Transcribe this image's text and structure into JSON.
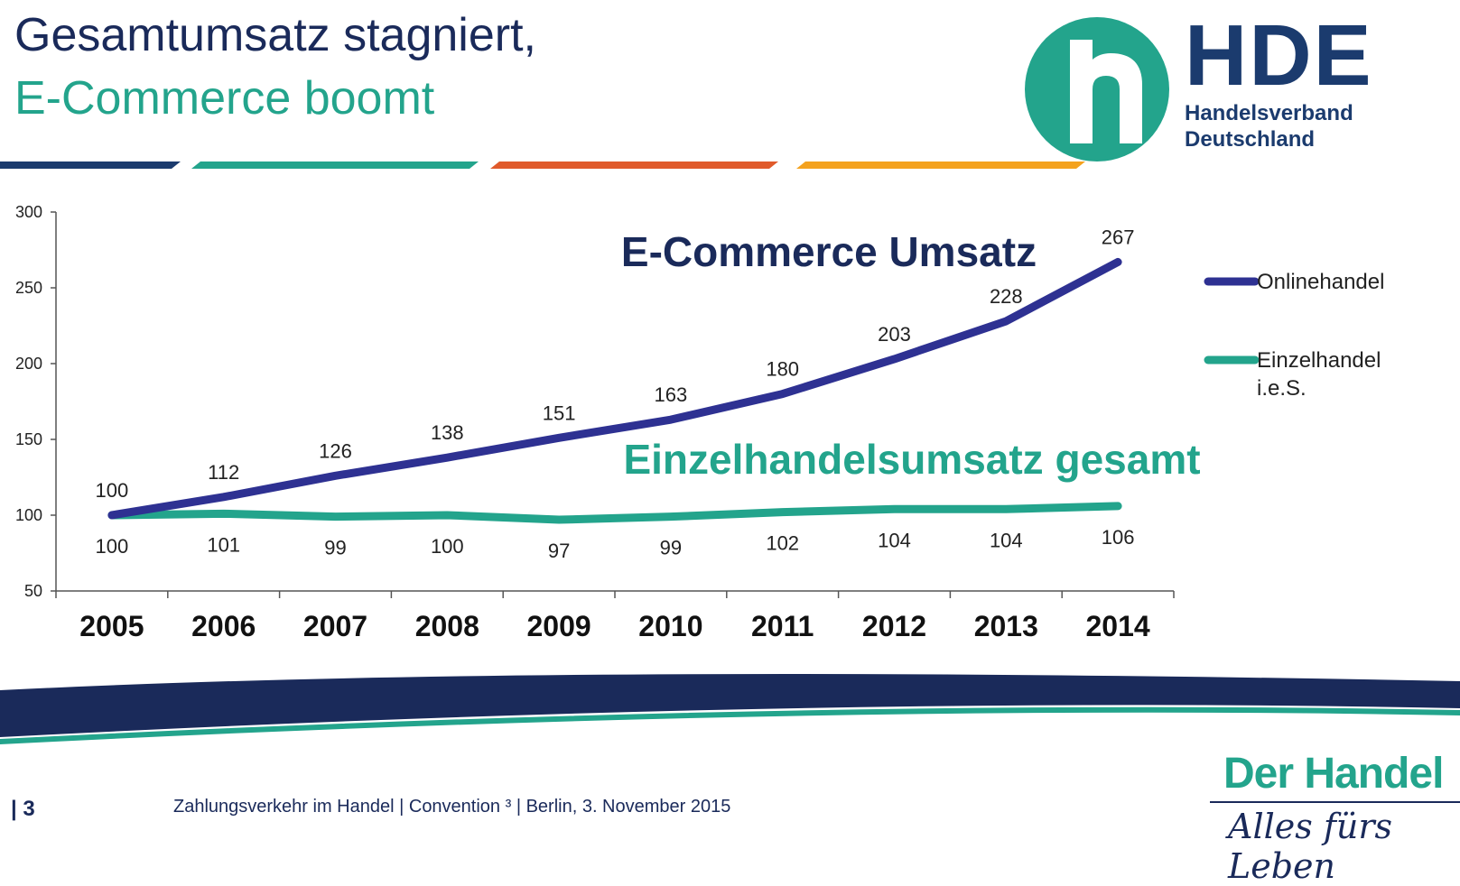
{
  "header": {
    "title_line1": "Gesamtumsatz stagniert,",
    "title_line2": "E-Commerce boomt"
  },
  "logo": {
    "name": "HDE",
    "subtitle_line1": "Handelsverband",
    "subtitle_line2": "Deutschland"
  },
  "chart_data": {
    "type": "line",
    "categories": [
      "2005",
      "2006",
      "2007",
      "2008",
      "2009",
      "2010",
      "2011",
      "2012",
      "2013",
      "2014"
    ],
    "series": [
      {
        "name": "Onlinehandel",
        "color": "#2e3192",
        "values": [
          100,
          112,
          126,
          138,
          151,
          163,
          180,
          203,
          228,
          267
        ]
      },
      {
        "name_line1": "Einzelhandel",
        "name_line2": "i.e.S.",
        "color": "#23a48c",
        "values": [
          100,
          101,
          99,
          100,
          97,
          99,
          102,
          104,
          104,
          106
        ]
      }
    ],
    "annotations": {
      "online": "E-Commerce Umsatz",
      "retail": "Einzelhandelsumsatz gesamt"
    },
    "yticks": [
      "300",
      "250",
      "200",
      "150",
      "100",
      "50"
    ],
    "ylim": [
      50,
      300
    ],
    "legend_position": "right"
  },
  "footer": {
    "page_number": "| 3",
    "text": "Zahlungsverkehr im Handel  | Convention ³ | Berlin, 3. November 2015",
    "brand_line1": "Der Handel",
    "brand_line2": "Alles fürs Leben"
  }
}
